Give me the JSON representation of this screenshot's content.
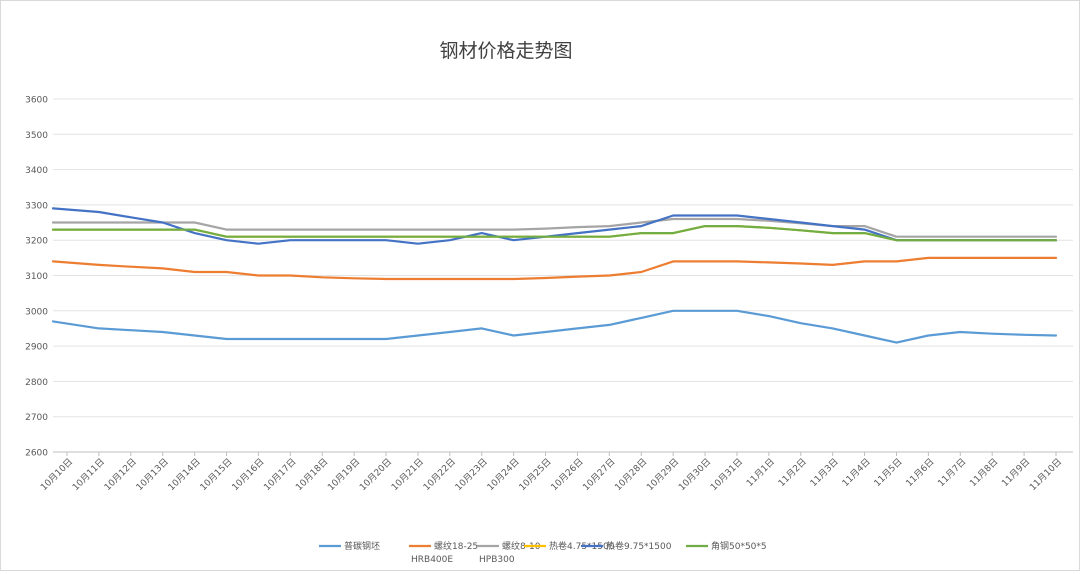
{
  "chart_data": {
    "type": "line",
    "title": "钢材价格走势图",
    "xlabel": "",
    "ylabel": "",
    "ylim": [
      2600,
      3600
    ],
    "yticks": [
      2600,
      2700,
      2800,
      2900,
      3000,
      3100,
      3200,
      3300,
      3400,
      3500,
      3600
    ],
    "grid": true,
    "legend_position": "bottom",
    "categories": [
      "10月10日",
      "10月11日",
      "10月12日",
      "10月13日",
      "10月14日",
      "10月15日",
      "10月16日",
      "10月17日",
      "10月18日",
      "10月19日",
      "10月20日",
      "10月21日",
      "10月22日",
      "10月23日",
      "10月24日",
      "10月25日",
      "10月26日",
      "10月27日",
      "10月28日",
      "10月29日",
      "10月30日",
      "10月31日",
      "11月1日",
      "11月2日",
      "11月3日",
      "11月4日",
      "11月5日",
      "11月6日",
      "11月7日",
      "11月8日",
      "11月9日",
      "11月10日"
    ],
    "series": [
      {
        "name": "普碳钢坯",
        "color": "#5b9bd5",
        "values": [
          2970,
          2950,
          2945,
          2940,
          2930,
          2920,
          2920,
          2920,
          2920,
          2920,
          2920,
          2930,
          2940,
          2950,
          2930,
          2940,
          2950,
          2960,
          2980,
          3000,
          3000,
          3000,
          2985,
          2965,
          2950,
          2930,
          2910,
          2930,
          2940,
          2935,
          2932,
          2930
        ]
      },
      {
        "name": "螺纹18-25",
        "name2": "HRB400E",
        "color": "#ed7d31",
        "values": [
          3140,
          3130,
          3125,
          3120,
          3110,
          3110,
          3100,
          3100,
          3095,
          3092,
          3090,
          3090,
          3090,
          3090,
          3090,
          3093,
          3097,
          3100,
          3110,
          3140,
          3140,
          3140,
          3137,
          3134,
          3130,
          3140,
          3140,
          3150,
          3150,
          3150,
          3150,
          3150
        ]
      },
      {
        "name": "螺纹8-10",
        "name2": "HPB300",
        "color": "#a5a5a5",
        "values": [
          3250,
          3250,
          3250,
          3250,
          3250,
          3230,
          3230,
          3230,
          3230,
          3230,
          3230,
          3230,
          3230,
          3230,
          3230,
          3233,
          3237,
          3240,
          3250,
          3260,
          3260,
          3260,
          3255,
          3248,
          3240,
          3240,
          3210,
          3210,
          3210,
          3210,
          3210,
          3210
        ]
      },
      {
        "name": "热卷4.75*1500",
        "color": "#ffc000",
        "values": [
          3230,
          3230,
          3230,
          3230,
          3230,
          3210,
          3210,
          3210,
          3210,
          3210,
          3210,
          3210,
          3210,
          3210,
          3210,
          3210,
          3210,
          3210,
          3220,
          3220,
          3240,
          3240,
          3235,
          3228,
          3220,
          3220,
          3200,
          3200,
          3200,
          3200,
          3200,
          3200
        ]
      },
      {
        "name": "热卷9.75*1500",
        "color": "#4472c4",
        "values": [
          3290,
          3280,
          3265,
          3250,
          3220,
          3200,
          3190,
          3200,
          3200,
          3200,
          3200,
          3190,
          3200,
          3220,
          3200,
          3210,
          3220,
          3230,
          3240,
          3270,
          3270,
          3270,
          3260,
          3250,
          3240,
          3230,
          3200,
          3200,
          3200,
          3200,
          3200,
          3200
        ]
      },
      {
        "name": "角钢50*50*5",
        "color": "#70ad47",
        "values": [
          3230,
          3230,
          3230,
          3230,
          3230,
          3210,
          3210,
          3210,
          3210,
          3210,
          3210,
          3210,
          3210,
          3210,
          3210,
          3210,
          3210,
          3210,
          3220,
          3220,
          3240,
          3240,
          3235,
          3228,
          3220,
          3220,
          3200,
          3200,
          3200,
          3200,
          3200,
          3200
        ]
      }
    ]
  }
}
